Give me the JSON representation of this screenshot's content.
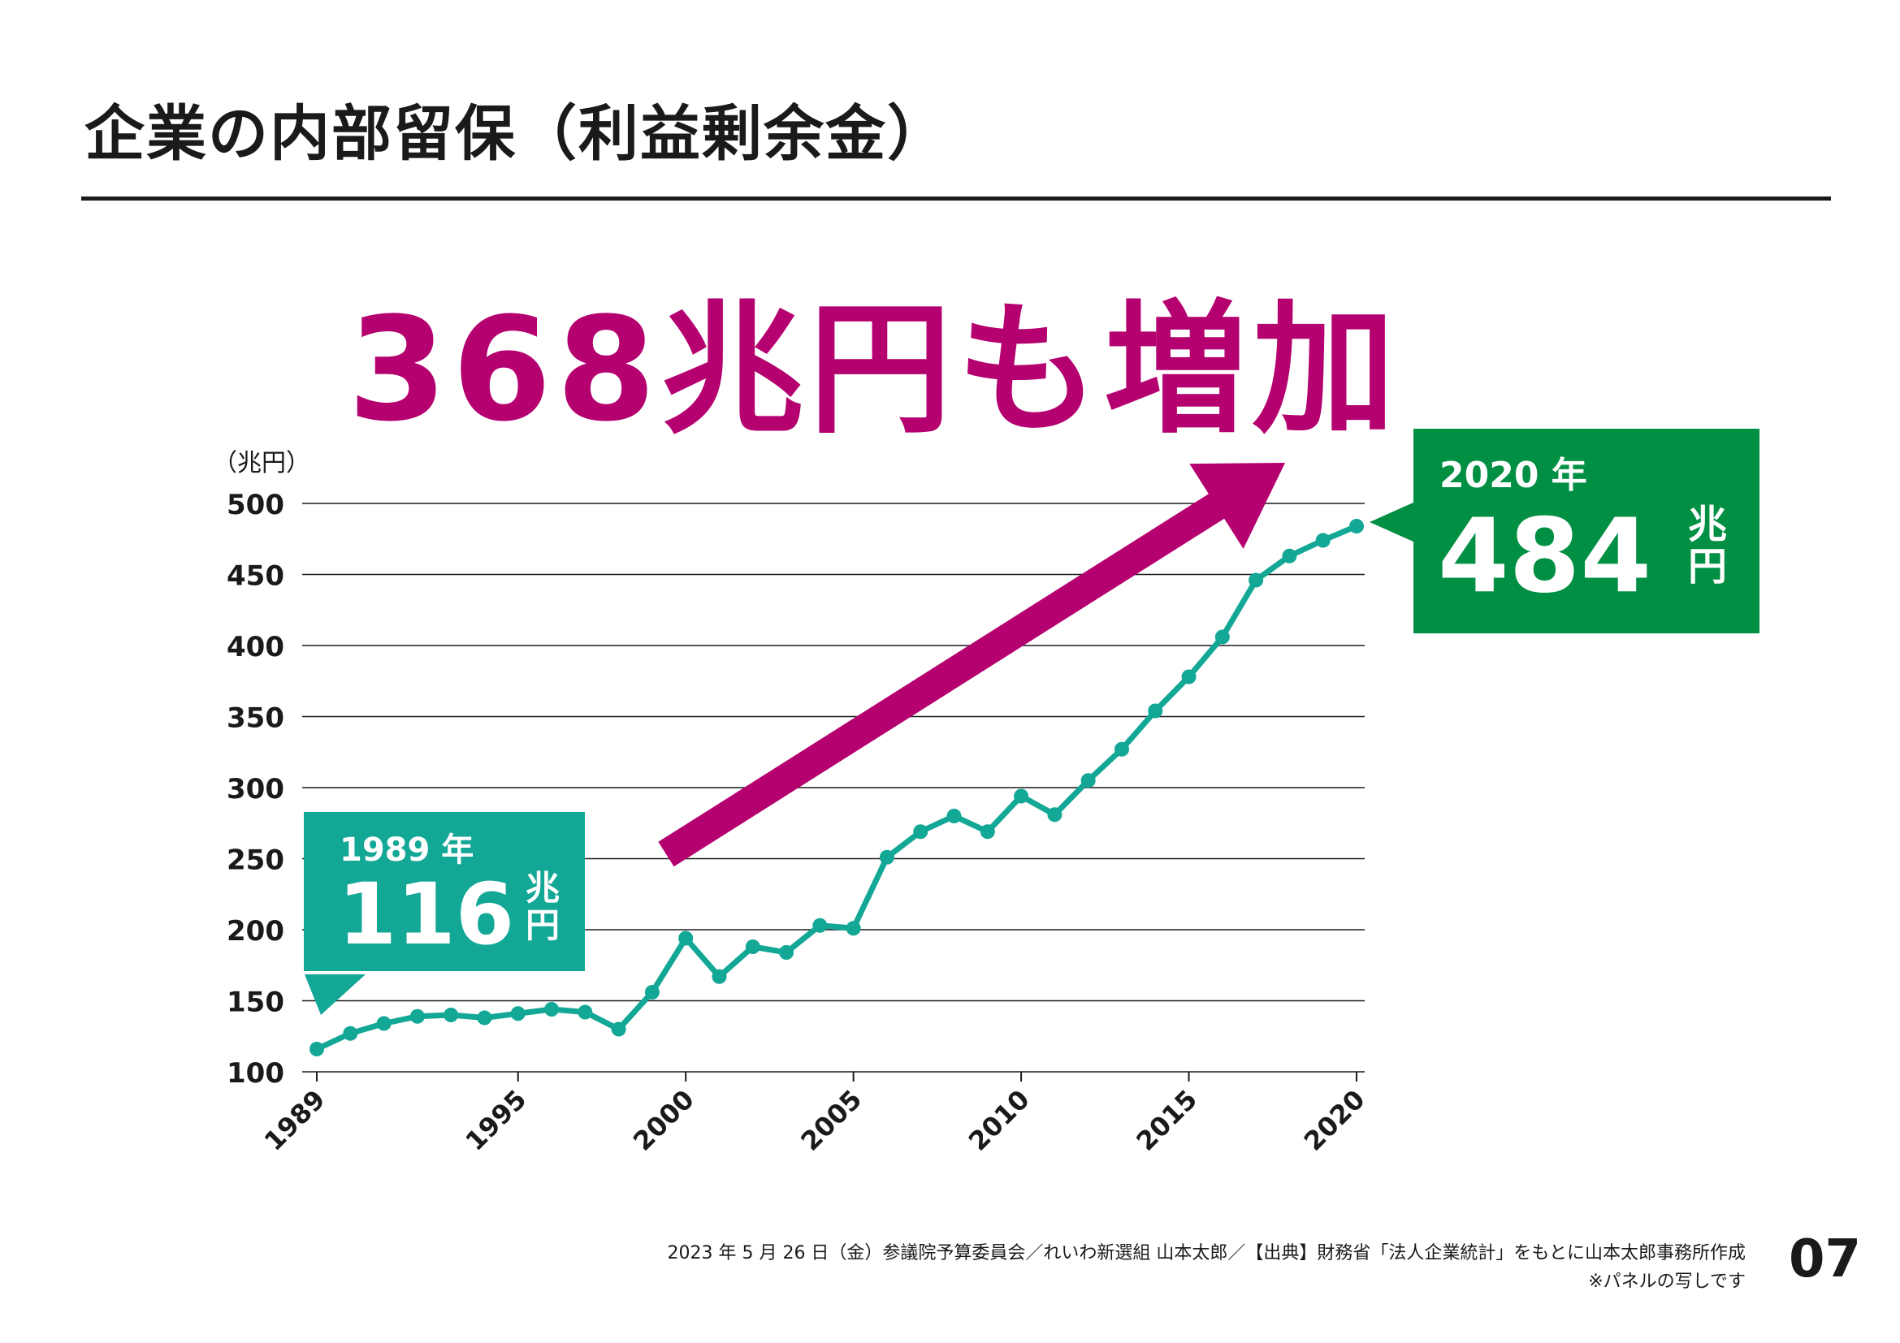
{
  "title": "企業の内部留保（利益剰余金）",
  "headline": "368兆円も増加",
  "chart_data": {
    "type": "line",
    "ylabel": "（兆円）",
    "ylim": [
      100,
      500
    ],
    "yticks": [
      "100",
      "150",
      "200",
      "250",
      "300",
      "350",
      "400",
      "450",
      "500"
    ],
    "xticks": [
      "1989",
      "1995",
      "2000",
      "2005",
      "2010",
      "2015",
      "2020"
    ],
    "grid": true,
    "series": [
      {
        "color": "#13a796",
        "x": [
          1989,
          1990,
          1991,
          1992,
          1993,
          1994,
          1995,
          1996,
          1997,
          1998,
          1999,
          2000,
          2001,
          2002,
          2003,
          2004,
          2005,
          2006,
          2007,
          2008,
          2009,
          2010,
          2011,
          2012,
          2013,
          2014,
          2015,
          2016,
          2017,
          2018,
          2019,
          2020
        ],
        "values": [
          116,
          127,
          134,
          139,
          140,
          138,
          141,
          144,
          142,
          130,
          156,
          194,
          167,
          188,
          184,
          203,
          201,
          251,
          269,
          280,
          269,
          294,
          281,
          305,
          327,
          354,
          378,
          406,
          446,
          463,
          474,
          484
        ]
      }
    ],
    "callouts": [
      {
        "year_label": "1989 年",
        "value": "116",
        "unit": "兆円",
        "color": "#13a796"
      },
      {
        "year_label": "2020 年",
        "value": "484",
        "unit": "兆円",
        "color": "#008f43"
      }
    ],
    "arrow_color": "#b5006f"
  },
  "footer": {
    "line1": "2023 年 5 月 26 日（金）参議院予算委員会／れいわ新選組 山本太郎／【出典】財務省「法人企業統計」をもとに山本太郎事務所作成",
    "line2": "※パネルの写しです"
  },
  "page_number": "07"
}
